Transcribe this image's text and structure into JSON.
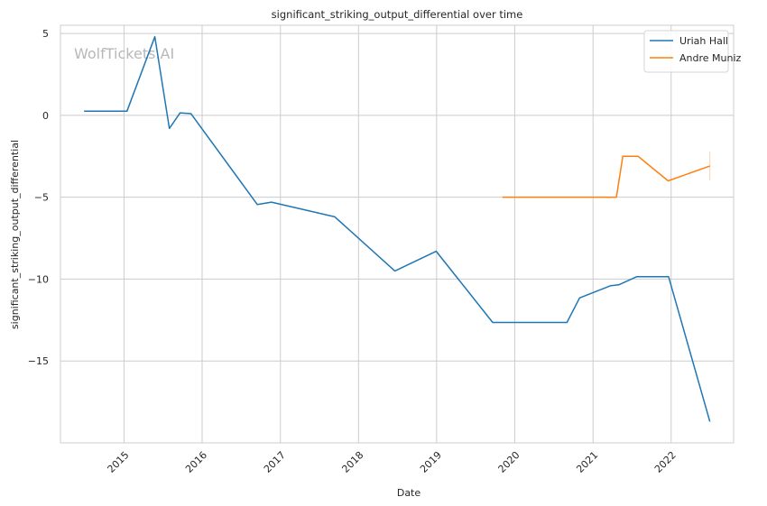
{
  "chart_data": {
    "type": "line",
    "title": "significant_striking_output_differential over time",
    "xlabel": "Date",
    "ylabel": "significant_striking_output_differential",
    "watermark": "WolfTickets.AI",
    "xlim": [
      "2014-03-10",
      "2022-10-20"
    ],
    "ylim": [
      -20.0,
      5.5
    ],
    "x_ticks": [
      "2015",
      "2016",
      "2017",
      "2018",
      "2019",
      "2020",
      "2021",
      "2022"
    ],
    "y_ticks": [
      5,
      0,
      -5,
      -10,
      -15
    ],
    "y_tick_labels": [
      "5",
      "0",
      "−5",
      "−10",
      "−15"
    ],
    "grid": true,
    "legend_position": "top-right",
    "series": [
      {
        "name": "Uriah Hall",
        "color": "#1f77b4",
        "points": [
          [
            "2014-06-28",
            0.25
          ],
          [
            "2015-01-15",
            0.25
          ],
          [
            "2015-05-25",
            4.8
          ],
          [
            "2015-08-01",
            -0.8
          ],
          [
            "2015-09-20",
            0.15
          ],
          [
            "2015-11-10",
            0.1
          ],
          [
            "2016-09-15",
            -5.45
          ],
          [
            "2016-11-20",
            -5.3
          ],
          [
            "2017-09-12",
            -6.2
          ],
          [
            "2018-06-20",
            -9.5
          ],
          [
            "2018-12-30",
            -8.3
          ],
          [
            "2019-09-20",
            -12.65
          ],
          [
            "2020-09-01",
            -12.65
          ],
          [
            "2020-10-30",
            -11.15
          ],
          [
            "2021-03-25",
            -10.4
          ],
          [
            "2021-05-01",
            -10.35
          ],
          [
            "2021-07-25",
            -9.85
          ],
          [
            "2021-12-20",
            -9.85
          ],
          [
            "2022-07-01",
            -18.7
          ]
        ]
      },
      {
        "name": "Andre Muniz",
        "color": "#ff7f0e",
        "points": [
          [
            "2019-11-05",
            -5.0
          ],
          [
            "2021-04-20",
            -5.0
          ],
          [
            "2021-05-20",
            -2.5
          ],
          [
            "2021-07-31",
            -2.5
          ],
          [
            "2021-12-18",
            -4.0
          ],
          [
            "2022-07-01",
            -3.1
          ]
        ]
      }
    ]
  }
}
